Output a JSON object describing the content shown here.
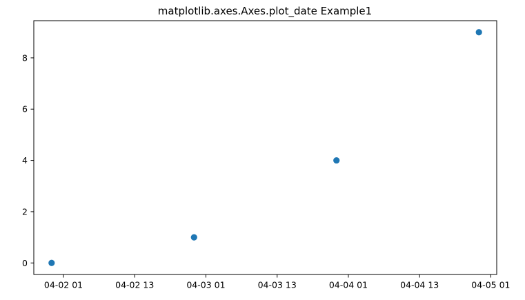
{
  "chart_data": {
    "type": "scatter",
    "title": "matplotlib.axes.Axes.plot_date Example1",
    "xlabel": "",
    "ylabel": "",
    "x_scale": "date",
    "x": [
      "04-01 23:00",
      "04-02 23:00",
      "04-03 23:00",
      "04-04 23:00"
    ],
    "y": [
      0,
      1,
      4,
      9
    ],
    "xlim": [
      "04-01 20:00",
      "04-05 02:00"
    ],
    "ylim": [
      -0.45,
      9.45
    ],
    "xticks": [
      "04-02 01",
      "04-02 13",
      "04-03 01",
      "04-03 13",
      "04-04 01",
      "04-04 13",
      "04-05 01"
    ],
    "yticks": [
      "0",
      "2",
      "4",
      "6",
      "8"
    ],
    "grid": false,
    "legend": "none",
    "marker_color": "#1f77b4"
  }
}
